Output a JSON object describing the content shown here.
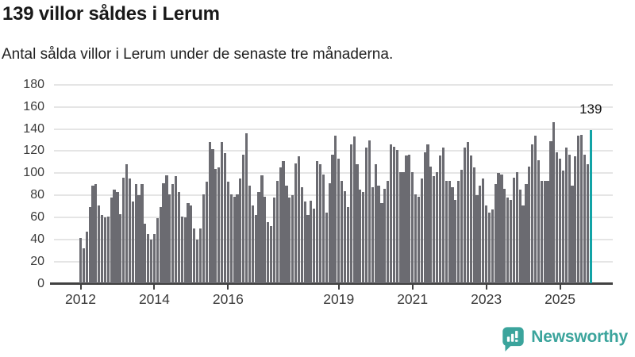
{
  "header": {
    "title": "139 villor såldes i Lerum",
    "subtitle": "Antal sålda villor i Lerum under de senaste tre månaderna."
  },
  "annotation": {
    "last_value_label": "139"
  },
  "footer": {
    "brand": "Newsworthy",
    "logo_icon": "newsworthy-bar-chart-bubble-icon"
  },
  "colors": {
    "bar": "#6b6b71",
    "highlight": "#12a3a6",
    "brand_teal": "#3ba49c",
    "gridline": "#e5e5e5",
    "axis": "#414141",
    "text": "#191919"
  },
  "chart_data": {
    "type": "bar",
    "title": "139 villor såldes i Lerum",
    "subtitle": "Antal sålda villor i Lerum under de senaste tre månaderna.",
    "xlabel": "",
    "ylabel": "",
    "ylim": [
      0,
      180
    ],
    "grid": true,
    "legend": false,
    "y_ticks": [
      0,
      20,
      40,
      60,
      80,
      100,
      120,
      140,
      160,
      180
    ],
    "x_ticks": [
      {
        "label": "2012",
        "month_index": 0
      },
      {
        "label": "2014",
        "month_index": 24
      },
      {
        "label": "2016",
        "month_index": 48
      },
      {
        "label": "2019",
        "month_index": 84
      },
      {
        "label": "2021",
        "month_index": 108
      },
      {
        "label": "2023",
        "month_index": 132
      },
      {
        "label": "2025",
        "month_index": 156
      }
    ],
    "start_month": "2012-01",
    "end_month": "2025-11",
    "series_name": "Antal sålda villor, rullande tre månader",
    "highlight_last": true,
    "last_value": 139,
    "values": [
      41,
      32,
      47,
      69,
      89,
      90,
      71,
      62,
      60,
      61,
      78,
      85,
      83,
      63,
      96,
      108,
      95,
      74,
      90,
      80,
      90,
      54,
      45,
      40,
      45,
      59,
      69,
      91,
      98,
      81,
      90,
      97,
      83,
      61,
      60,
      73,
      71,
      50,
      40,
      50,
      81,
      92,
      128,
      122,
      104,
      105,
      128,
      118,
      92,
      81,
      79,
      81,
      95,
      117,
      136,
      89,
      71,
      62,
      83,
      98,
      79,
      56,
      52,
      78,
      93,
      105,
      111,
      89,
      78,
      80,
      109,
      115,
      87,
      74,
      62,
      75,
      68,
      111,
      108,
      99,
      64,
      91,
      117,
      134,
      113,
      93,
      84,
      69,
      126,
      133,
      108,
      85,
      83,
      123,
      130,
      87,
      108,
      89,
      73,
      86,
      93,
      126,
      124,
      121,
      101,
      101,
      116,
      117,
      101,
      81,
      79,
      95,
      119,
      126,
      106,
      97,
      101,
      116,
      123,
      93,
      93,
      87,
      76,
      93,
      103,
      123,
      128,
      116,
      105,
      80,
      89,
      95,
      71,
      64,
      67,
      90,
      100,
      99,
      86,
      78,
      76,
      96,
      101,
      85,
      71,
      90,
      106,
      126,
      134,
      112,
      93,
      93,
      93,
      129,
      146,
      119,
      113,
      102,
      123,
      117,
      89,
      115,
      134,
      135,
      117,
      108,
      139
    ]
  }
}
